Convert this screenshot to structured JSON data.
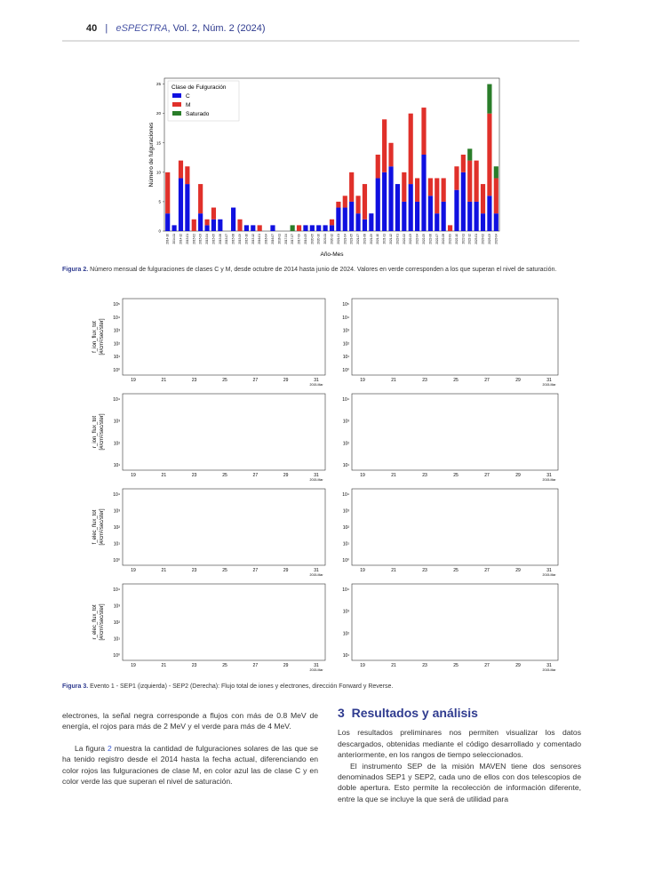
{
  "header": {
    "page": "40",
    "separator": "|",
    "journal": "eSPECTRA",
    "issue": ", Vol. 2, Núm. 2 (2024)"
  },
  "chart_data": {
    "type": "stacked-bar",
    "ylabel": "Número de fulguraciones",
    "xlabel": "Año-Mes",
    "legend_title": "Clase de Fulguración",
    "legend": "upper left",
    "ylim": [
      0,
      26
    ],
    "yticks": [
      0,
      5,
      10,
      15,
      20,
      25
    ],
    "categories": [
      "2014-10",
      "2014-11",
      "2014-12",
      "2015-01",
      "2015-02",
      "2015-03",
      "2015-04",
      "2015-05",
      "2015-06",
      "2015-07",
      "2015-08",
      "2015-09",
      "2015-10",
      "2015-12",
      "2016-01",
      "2016-04",
      "2016-07",
      "2016-11",
      "2017-04",
      "2017-07",
      "2017-09",
      "2019-05",
      "2020-05",
      "2020-10",
      "2020-11",
      "2020-12",
      "2021-01",
      "2021-04",
      "2021-05",
      "2021-07",
      "2021-08",
      "2021-09",
      "2021-10",
      "2021-11",
      "2021-12",
      "2022-01",
      "2022-02",
      "2022-03",
      "2022-04",
      "2022-05",
      "2022-06",
      "2022-07",
      "2022-08",
      "2022-09",
      "2022-10",
      "2022-11",
      "2022-12",
      "2023-01",
      "2023-02",
      "2023-03",
      "2023-04"
    ],
    "series": [
      {
        "name": "C",
        "color": "#1010e0",
        "values": [
          3,
          1,
          9,
          8,
          0,
          3,
          1,
          2,
          2,
          0,
          4,
          0,
          1,
          1,
          0,
          0,
          1,
          0,
          0,
          0,
          0,
          1,
          1,
          1,
          1,
          1,
          4,
          4,
          5,
          3,
          2,
          3,
          9,
          10,
          11,
          8,
          5,
          8,
          5,
          13,
          6,
          3,
          5,
          0,
          7,
          10,
          5,
          5,
          3,
          6,
          3
        ]
      },
      {
        "name": "M",
        "color": "#e0302a",
        "values": [
          7,
          0,
          3,
          3,
          2,
          5,
          1,
          2,
          0,
          0,
          0,
          2,
          0,
          0,
          1,
          0,
          0,
          0,
          0,
          0,
          1,
          0,
          0,
          0,
          0,
          1,
          1,
          2,
          5,
          3,
          6,
          0,
          4,
          9,
          4,
          0,
          5,
          12,
          4,
          8,
          3,
          6,
          4,
          1,
          4,
          3,
          7,
          7,
          5,
          14,
          6
        ]
      },
      {
        "name": "Saturado",
        "color": "#2a7d2a",
        "values": [
          0,
          0,
          0,
          0,
          0,
          0,
          0,
          0,
          0,
          0,
          0,
          0,
          0,
          0,
          0,
          0,
          0,
          0,
          0,
          1,
          0,
          0,
          0,
          0,
          0,
          0,
          0,
          0,
          0,
          0,
          0,
          0,
          0,
          0,
          0,
          0,
          0,
          0,
          0,
          0,
          0,
          0,
          0,
          0,
          0,
          0,
          2,
          0,
          0,
          5,
          2
        ]
      }
    ]
  },
  "figure2_caption": {
    "label": "Figura 2.",
    "text": " Número mensual de fulguraciones de clases C y M, desde octubre de 2014 hasta junio de 2024. Valores en verde corresponden a los que superan el nivel de saturación."
  },
  "figure3": {
    "panels": [
      {
        "ylabel": "f_ion_flux_tot",
        "yunit": "[#/cm²/sec/ster]",
        "yticks": [
          "10⁵",
          "10⁴",
          "10³",
          "10²",
          "10¹",
          "10⁰"
        ],
        "xticks": [
          "19",
          "21",
          "23",
          "25",
          "27",
          "29",
          "31"
        ],
        "xunit": "2015-Mar"
      },
      {
        "yticks": [
          "10⁵",
          "10⁴",
          "10³",
          "10²",
          "10¹",
          "10⁰"
        ],
        "xticks": [
          "19",
          "21",
          "23",
          "25",
          "27",
          "29",
          "31"
        ],
        "xunit": "2015-Mar"
      },
      {
        "ylabel": "r_ion_flux_tot",
        "yunit": "[#/cm²/sec/ster]",
        "yticks": [
          "10⁴",
          "10³",
          "10²",
          "10¹"
        ],
        "xticks": [
          "19",
          "21",
          "23",
          "25",
          "27",
          "29",
          "31"
        ],
        "xunit": "2015-Mar"
      },
      {
        "yticks": [
          "10⁴",
          "10³",
          "10²",
          "10¹"
        ],
        "xticks": [
          "19",
          "21",
          "23",
          "25",
          "27",
          "29",
          "31"
        ],
        "xunit": "2015-Mar"
      },
      {
        "ylabel": "f_elec_flux_tot",
        "yunit": "[#/cm²/sec/ster]",
        "yticks": [
          "10⁴",
          "10³",
          "10²",
          "10¹",
          "10⁰"
        ],
        "xticks": [
          "19",
          "21",
          "23",
          "25",
          "27",
          "29",
          "31"
        ],
        "xunit": "2015-Mar"
      },
      {
        "yticks": [
          "10⁴",
          "10³",
          "10²",
          "10¹",
          "10⁰"
        ],
        "xticks": [
          "19",
          "21",
          "23",
          "25",
          "27",
          "29",
          "31"
        ],
        "xunit": "2015-Mar"
      },
      {
        "ylabel": "r_elec_flux_tot",
        "yunit": "[#/cm²/sec/ster]",
        "yticks": [
          "10⁴",
          "10³",
          "10²",
          "10¹",
          "10⁰"
        ],
        "xticks": [
          "19",
          "21",
          "23",
          "25",
          "27",
          "29",
          "31"
        ],
        "xunit": "2015-Mar"
      },
      {
        "yticks": [
          "10⁴",
          "10³",
          "10²",
          "10¹"
        ],
        "xticks": [
          "19",
          "21",
          "23",
          "25",
          "27",
          "29",
          "31"
        ],
        "xunit": "2015-Mar"
      }
    ],
    "caption": {
      "label": "Figura 3.",
      "text": " Evento 1 - SEP1 (izquierda) - SEP2 (Derecha): Flujo total de iones y electrones, dirección Forward y Reverse."
    }
  },
  "left_column": {
    "p1": "electrones, la señal negra corresponde a flujos con más de 0.8 MeV de energía, el rojos para más de 2 MeV y el verde para más de 4 MeV.",
    "p2_a": "La figura ",
    "p2_ref": "2",
    "p2_b": " muestra la cantidad de fulguraciones solares de las que se ha tenido registro desde el 2014 hasta la fecha actual, diferenciando en color rojos las fulguraciones de clase M, en color azul las de clase C y en color verde las que superan el nivel de saturación."
  },
  "right_column": {
    "section_number": "3",
    "section_title": "Resultados y análisis",
    "p1": "Los resultados preliminares nos permiten visualizar los datos descargados, obtenidas mediante el código desarrollado y comentado anteriormente, en los rangos de tiempo seleccionados.",
    "p2": "El instrumento SEP de la misión MAVEN tiene dos sensores denominados SEP1 y SEP2, cada uno de ellos con dos telescopios de doble apertura. Esto permite la recolección de información diferente, entre la que se incluye la que será de utilidad para"
  }
}
